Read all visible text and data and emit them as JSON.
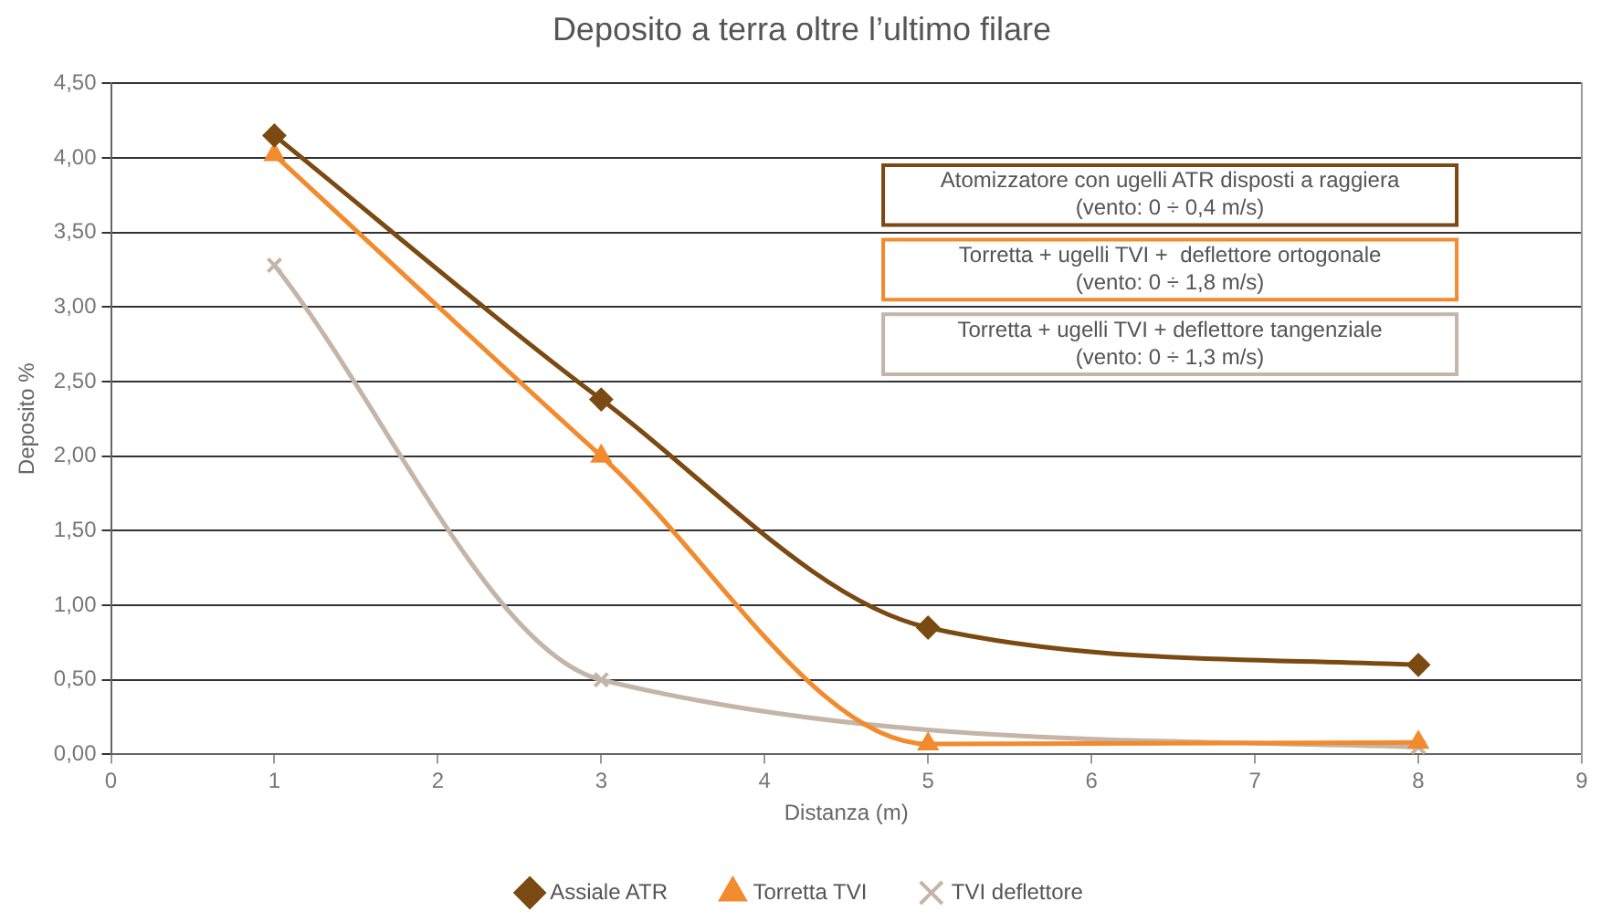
{
  "chart_data": {
    "type": "line",
    "title": "Deposito a terra oltre l’ultimo filare",
    "xlabel": "Distanza (m)",
    "ylabel": "Deposito %",
    "x": [
      1,
      3,
      5,
      8
    ],
    "series": [
      {
        "name": "Assiale ATR",
        "color": "#7b4a12",
        "marker": "diamond",
        "values": [
          4.15,
          2.38,
          0.85,
          0.6
        ]
      },
      {
        "name": "Torretta TVI",
        "color": "#f28a2e",
        "marker": "triangle",
        "values": [
          4.02,
          2.0,
          0.07,
          0.08
        ]
      },
      {
        "name": "TVI deflettore",
        "color": "#c4b5a8",
        "marker": "cross",
        "values": [
          3.28,
          0.5,
          null,
          0.05
        ]
      }
    ],
    "xlim": [
      0,
      9
    ],
    "xticks": [
      0,
      1,
      2,
      3,
      4,
      5,
      6,
      7,
      8,
      9
    ],
    "ylim": [
      0,
      4.5
    ],
    "yticks": [
      {
        "value": 0,
        "label": "0,00"
      },
      {
        "value": 0.5,
        "label": "0,50"
      },
      {
        "value": 1,
        "label": "1,00"
      },
      {
        "value": 1.5,
        "label": "1,50"
      },
      {
        "value": 2,
        "label": "2,00"
      },
      {
        "value": 2.5,
        "label": "2,50"
      },
      {
        "value": 3,
        "label": "3,00"
      },
      {
        "value": 3.5,
        "label": "3,50"
      },
      {
        "value": 4,
        "label": "4,00"
      },
      {
        "value": 4.5,
        "label": "4,50"
      }
    ],
    "annotations": [
      "Atomizzatore con ugelli ATR disposti a raggiera\n(vento: 0 ÷ 0,4 m/s)",
      "Torretta + ugelli TVI +  deflettore ortogonale\n(vento: 0 ÷ 1,8 m/s)",
      "Torretta + ugelli TVI + deflettore tangenziale\n(vento: 0 ÷ 1,3 m/s)"
    ],
    "grid": "y",
    "legend": "bottom"
  }
}
